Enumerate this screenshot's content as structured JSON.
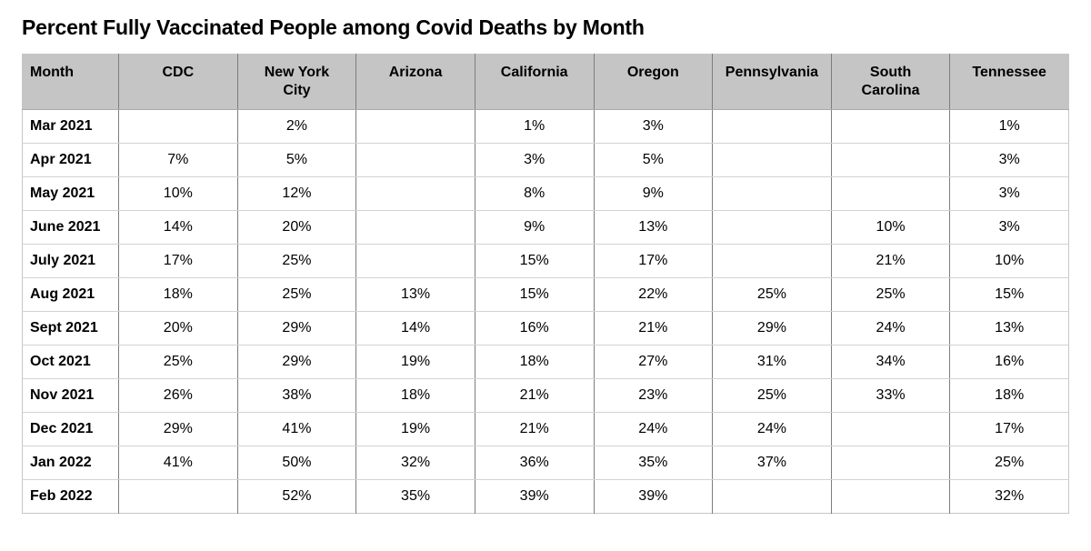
{
  "title": "Percent Fully Vaccinated People among Covid Deaths by Month",
  "colors": {
    "header_background": "#c5c5c5",
    "grid_vertical": "#7d7d7d",
    "grid_horizontal": "#d2d2d2",
    "outer_border": "#c6c6c6",
    "text": "#000000",
    "page_background": "#ffffff"
  },
  "table": {
    "columns": [
      "Month",
      "CDC",
      "New York\nCity",
      "Arizona",
      "California",
      "Oregon",
      "Pennsylvania",
      "South\nCarolina",
      "Tennessee"
    ],
    "rows": [
      {
        "month": "Mar 2021",
        "values": [
          "",
          "2%",
          "",
          "1%",
          "3%",
          "",
          "",
          "1%"
        ]
      },
      {
        "month": "Apr 2021",
        "values": [
          "7%",
          "5%",
          "",
          "3%",
          "5%",
          "",
          "",
          "3%"
        ]
      },
      {
        "month": "May 2021",
        "values": [
          "10%",
          "12%",
          "",
          "8%",
          "9%",
          "",
          "",
          "3%"
        ]
      },
      {
        "month": "June 2021",
        "values": [
          "14%",
          "20%",
          "",
          "9%",
          "13%",
          "",
          "10%",
          "3%"
        ]
      },
      {
        "month": "July 2021",
        "values": [
          "17%",
          "25%",
          "",
          "15%",
          "17%",
          "",
          "21%",
          "10%"
        ]
      },
      {
        "month": "Aug 2021",
        "values": [
          "18%",
          "25%",
          "13%",
          "15%",
          "22%",
          "25%",
          "25%",
          "15%"
        ]
      },
      {
        "month": "Sept 2021",
        "values": [
          "20%",
          "29%",
          "14%",
          "16%",
          "21%",
          "29%",
          "24%",
          "13%"
        ]
      },
      {
        "month": "Oct 2021",
        "values": [
          "25%",
          "29%",
          "19%",
          "18%",
          "27%",
          "31%",
          "34%",
          "16%"
        ]
      },
      {
        "month": "Nov 2021",
        "values": [
          "26%",
          "38%",
          "18%",
          "21%",
          "23%",
          "25%",
          "33%",
          "18%"
        ]
      },
      {
        "month": "Dec 2021",
        "values": [
          "29%",
          "41%",
          "19%",
          "21%",
          "24%",
          "24%",
          "",
          "17%"
        ]
      },
      {
        "month": "Jan 2022",
        "values": [
          "41%",
          "50%",
          "32%",
          "36%",
          "35%",
          "37%",
          "",
          "25%"
        ]
      },
      {
        "month": "Feb 2022",
        "values": [
          "",
          "52%",
          "35%",
          "39%",
          "39%",
          "",
          "",
          "32%"
        ]
      }
    ]
  },
  "chart_data": {
    "type": "table",
    "title": "Percent Fully Vaccinated People among Covid Deaths by Month",
    "unit": "percent",
    "categories": [
      "Mar 2021",
      "Apr 2021",
      "May 2021",
      "June 2021",
      "July 2021",
      "Aug 2021",
      "Sept 2021",
      "Oct 2021",
      "Nov 2021",
      "Dec 2021",
      "Jan 2022",
      "Feb 2022"
    ],
    "series": [
      {
        "name": "CDC",
        "values": [
          null,
          7,
          10,
          14,
          17,
          18,
          20,
          25,
          26,
          29,
          41,
          null
        ]
      },
      {
        "name": "New York City",
        "values": [
          2,
          5,
          12,
          20,
          25,
          25,
          29,
          29,
          38,
          41,
          50,
          52
        ]
      },
      {
        "name": "Arizona",
        "values": [
          null,
          null,
          null,
          null,
          null,
          13,
          14,
          19,
          18,
          19,
          32,
          35
        ]
      },
      {
        "name": "California",
        "values": [
          1,
          3,
          8,
          9,
          15,
          15,
          16,
          18,
          21,
          21,
          36,
          39
        ]
      },
      {
        "name": "Oregon",
        "values": [
          3,
          5,
          9,
          13,
          17,
          22,
          21,
          27,
          23,
          24,
          35,
          39
        ]
      },
      {
        "name": "Pennsylvania",
        "values": [
          null,
          null,
          null,
          null,
          null,
          25,
          29,
          31,
          25,
          24,
          37,
          null
        ]
      },
      {
        "name": "South Carolina",
        "values": [
          null,
          null,
          null,
          10,
          21,
          25,
          24,
          34,
          33,
          null,
          null,
          null
        ]
      },
      {
        "name": "Tennessee",
        "values": [
          1,
          3,
          3,
          3,
          10,
          15,
          13,
          16,
          18,
          17,
          25,
          32
        ]
      }
    ]
  }
}
